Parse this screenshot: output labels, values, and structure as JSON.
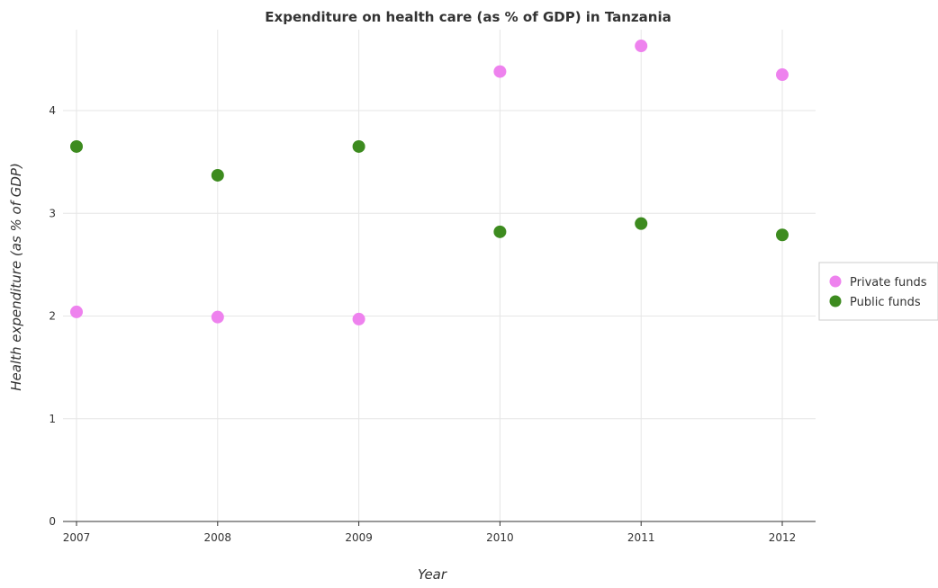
{
  "chart_data": {
    "type": "scatter",
    "title": "Expenditure on health care (as % of GDP) in Tanzania",
    "xlabel": "Year",
    "ylabel": "Health expenditure (as % of GDP)",
    "categories": [
      "2007",
      "2008",
      "2009",
      "2010",
      "2011",
      "2012"
    ],
    "ylim": [
      0,
      4.8
    ],
    "yticks": [
      "0",
      "1",
      "2",
      "3",
      "4"
    ],
    "grid": true,
    "legend_position": "right",
    "series": [
      {
        "name": "Private funds",
        "color": "#ee82ee",
        "values": [
          2.04,
          1.99,
          1.97,
          4.38,
          4.63,
          4.35
        ]
      },
      {
        "name": "Public funds",
        "color": "#3d8b1f",
        "values": [
          3.65,
          3.37,
          3.65,
          2.82,
          2.9,
          2.79
        ]
      }
    ]
  }
}
